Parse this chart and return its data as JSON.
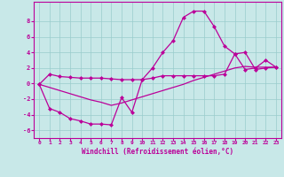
{
  "xlabel": "Windchill (Refroidissement éolien,°C)",
  "bg_color": "#c8e8e8",
  "grid_color": "#99cccc",
  "line_color": "#bb0099",
  "xlim": [
    -0.5,
    23.5
  ],
  "ylim": [
    -7.0,
    10.5
  ],
  "xticks": [
    0,
    1,
    2,
    3,
    4,
    5,
    6,
    7,
    8,
    9,
    10,
    11,
    12,
    13,
    14,
    15,
    16,
    17,
    18,
    19,
    20,
    21,
    22,
    23
  ],
  "yticks": [
    -6,
    -4,
    -2,
    0,
    2,
    4,
    6,
    8
  ],
  "hours": [
    0,
    1,
    2,
    3,
    4,
    5,
    6,
    7,
    8,
    9,
    10,
    11,
    12,
    13,
    14,
    15,
    16,
    17,
    18,
    19,
    20,
    21,
    22,
    23
  ],
  "line1": [
    -0.1,
    1.2,
    0.9,
    0.8,
    0.7,
    0.7,
    0.7,
    0.6,
    0.5,
    0.5,
    0.5,
    2.0,
    4.0,
    5.5,
    8.5,
    9.3,
    9.3,
    7.3,
    4.8,
    3.8,
    1.8,
    2.0,
    3.0,
    2.1
  ],
  "line2": [
    -0.1,
    -3.2,
    -3.7,
    -4.5,
    -4.8,
    -5.2,
    -5.2,
    -5.3,
    -1.8,
    -3.7,
    0.5,
    0.7,
    1.0,
    1.0,
    1.0,
    1.0,
    1.0,
    1.0,
    1.2,
    3.8,
    4.0,
    1.8,
    2.0,
    2.1
  ],
  "line3": [
    -0.1,
    -0.5,
    -0.9,
    -1.3,
    -1.7,
    -2.1,
    -2.4,
    -2.8,
    -2.5,
    -2.1,
    -1.7,
    -1.3,
    -0.9,
    -0.5,
    -0.1,
    0.4,
    0.8,
    1.2,
    1.6,
    2.0,
    2.2,
    2.1,
    2.1,
    2.1
  ]
}
